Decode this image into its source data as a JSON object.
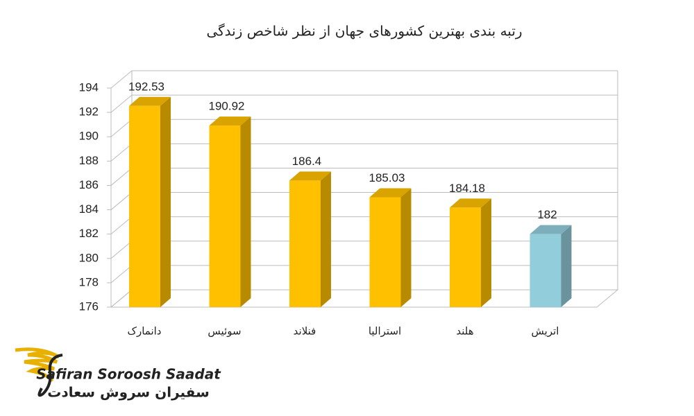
{
  "chart_data": {
    "type": "bar3d",
    "title": "رتبه بندی بهترین کشورهای جهان از نظر شاخص زندگی",
    "categories": [
      "دانمارک",
      "سوئیس",
      "فنلاند",
      "استرالیا",
      "هلند",
      "اتریش"
    ],
    "values": [
      192.53,
      190.92,
      186.4,
      185.03,
      184.18,
      182
    ],
    "colors": [
      "#ffc000",
      "#ffc000",
      "#ffc000",
      "#ffc000",
      "#ffc000",
      "#92cddc"
    ],
    "ylim": [
      176,
      194
    ],
    "yticks": [
      176,
      178,
      180,
      182,
      184,
      186,
      188,
      190,
      192,
      194
    ],
    "grid": true
  },
  "logo": {
    "name_en": "Safiran Soroosh Saadat",
    "name_fa": "سفیران سروش سعادت"
  }
}
